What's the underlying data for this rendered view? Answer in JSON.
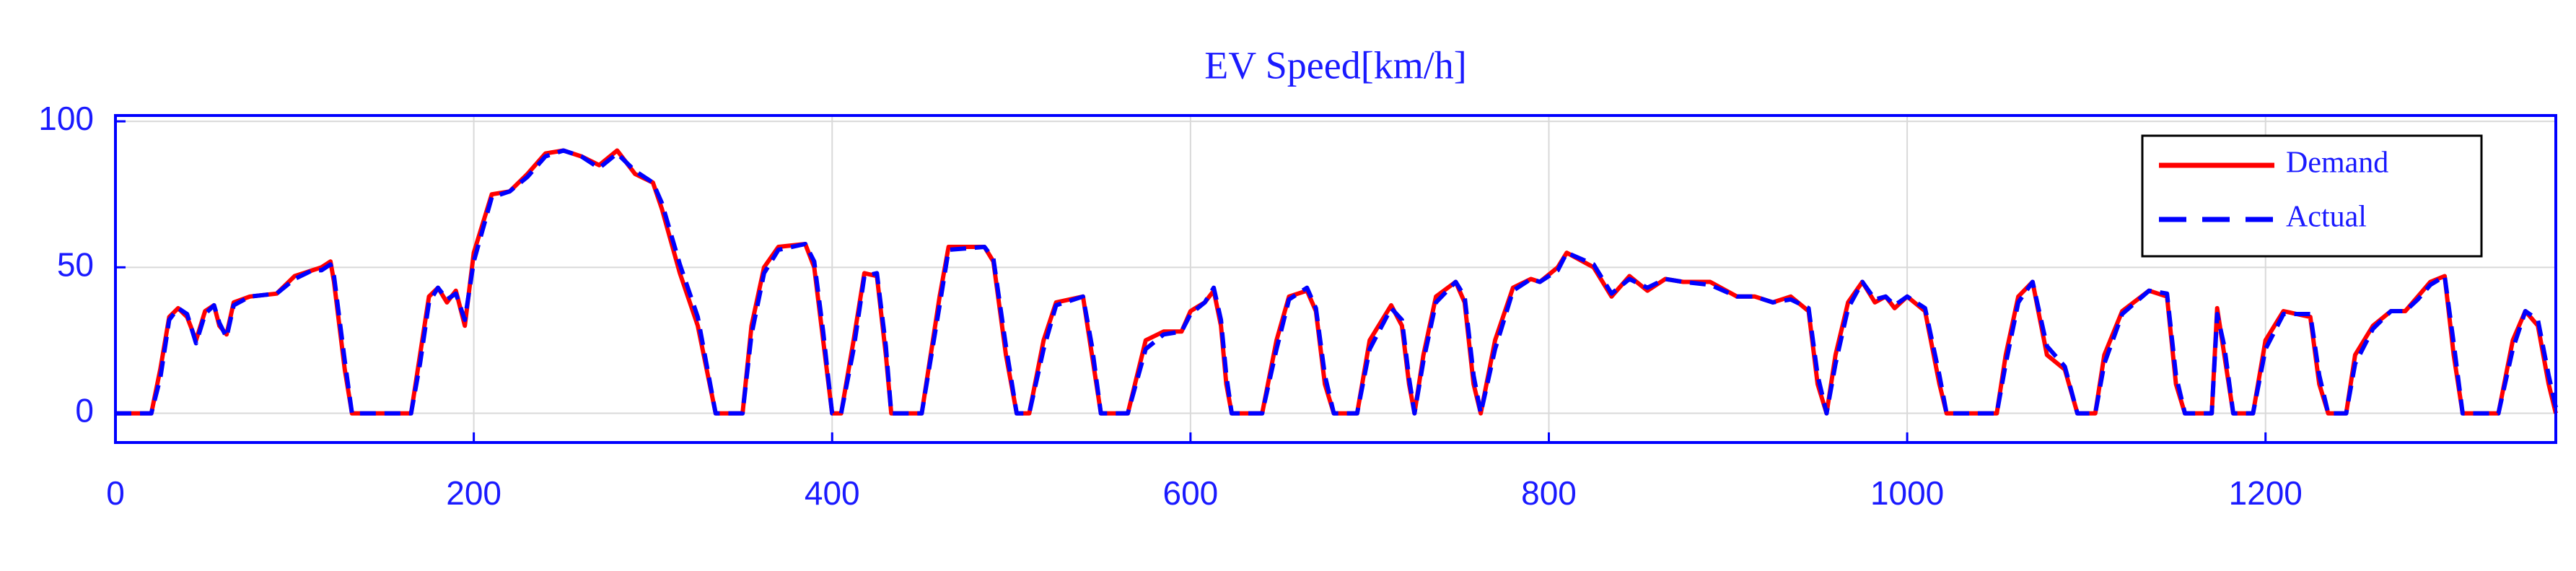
{
  "chart_data": {
    "type": "line",
    "title": "EV Speed[km/h]",
    "x": [
      0,
      20,
      25,
      30,
      35,
      40,
      45,
      50,
      55,
      58,
      62,
      66,
      75,
      90,
      100,
      110,
      115,
      120,
      122,
      128,
      132,
      165,
      170,
      175,
      180,
      185,
      190,
      195,
      200,
      210,
      220,
      230,
      240,
      250,
      260,
      270,
      280,
      290,
      300,
      305,
      315,
      325,
      335,
      350,
      355,
      362,
      370,
      385,
      390,
      395,
      400,
      405,
      412,
      418,
      425,
      430,
      433,
      450,
      460,
      465,
      485,
      490,
      497,
      503,
      510,
      518,
      525,
      540,
      545,
      550,
      565,
      575,
      585,
      595,
      600,
      608,
      613,
      617,
      620,
      623,
      640,
      648,
      655,
      665,
      670,
      675,
      680,
      693,
      700,
      712,
      718,
      722,
      725,
      730,
      737,
      748,
      753,
      758,
      762,
      770,
      780,
      790,
      795,
      805,
      810,
      825,
      835,
      845,
      855,
      865,
      875,
      890,
      905,
      915,
      925,
      935,
      945,
      950,
      955,
      960,
      967,
      975,
      982,
      988,
      993,
      1000,
      1010,
      1018,
      1022,
      1050,
      1055,
      1062,
      1070,
      1078,
      1088,
      1095,
      1105,
      1110,
      1120,
      1135,
      1145,
      1150,
      1155,
      1170,
      1173,
      1177,
      1182,
      1193,
      1200,
      1210,
      1225,
      1230,
      1235,
      1245,
      1250,
      1260,
      1270,
      1278,
      1285,
      1292,
      1300,
      1305,
      1310,
      1330,
      1338,
      1345,
      1352,
      1358,
      1362
    ],
    "series": [
      {
        "name": "Demand",
        "color": "#ff0000",
        "dash": false,
        "values": [
          0,
          0,
          15,
          33,
          36,
          33,
          25,
          35,
          37,
          30,
          27,
          38,
          40,
          41,
          47,
          49,
          50,
          52,
          45,
          15,
          0,
          0,
          20,
          40,
          43,
          38,
          42,
          30,
          55,
          75,
          76,
          82,
          89,
          90,
          88,
          85,
          90,
          82,
          79,
          70,
          48,
          30,
          0,
          0,
          30,
          50,
          57,
          58,
          50,
          25,
          0,
          0,
          25,
          48,
          47,
          20,
          0,
          0,
          40,
          57,
          57,
          52,
          20,
          0,
          0,
          25,
          38,
          40,
          20,
          0,
          0,
          25,
          28,
          28,
          35,
          38,
          42,
          30,
          10,
          0,
          0,
          25,
          40,
          42,
          35,
          10,
          0,
          0,
          25,
          37,
          30,
          10,
          0,
          20,
          40,
          45,
          38,
          10,
          0,
          25,
          43,
          46,
          45,
          50,
          55,
          50,
          40,
          47,
          42,
          46,
          45,
          45,
          40,
          40,
          38,
          40,
          35,
          10,
          0,
          20,
          38,
          45,
          38,
          40,
          36,
          40,
          35,
          10,
          0,
          0,
          20,
          40,
          45,
          20,
          15,
          0,
          0,
          20,
          35,
          42,
          40,
          10,
          0,
          0,
          36,
          20,
          0,
          0,
          25,
          35,
          33,
          10,
          0,
          0,
          20,
          30,
          35,
          35,
          40,
          45,
          47,
          20,
          0,
          0,
          25,
          35,
          30,
          10,
          0
        ]
      },
      {
        "name": "Actual",
        "color": "#0000ff",
        "dash": true,
        "values": [
          0,
          0,
          12,
          32,
          36,
          34,
          24,
          34,
          37,
          31,
          26,
          37,
          40,
          41,
          46,
          49,
          49,
          51,
          47,
          18,
          0,
          0,
          17,
          38,
          43,
          39,
          41,
          32,
          52,
          74,
          76,
          81,
          88,
          90,
          88,
          84,
          89,
          83,
          79,
          72,
          51,
          33,
          0,
          0,
          27,
          48,
          56,
          58,
          52,
          28,
          0,
          0,
          22,
          47,
          48,
          23,
          0,
          0,
          37,
          56,
          57,
          53,
          23,
          0,
          0,
          22,
          37,
          40,
          23,
          0,
          0,
          22,
          27,
          28,
          34,
          38,
          43,
          32,
          13,
          0,
          0,
          22,
          39,
          43,
          36,
          13,
          0,
          0,
          22,
          36,
          32,
          12,
          0,
          18,
          38,
          45,
          40,
          13,
          0,
          22,
          42,
          46,
          45,
          49,
          55,
          51,
          41,
          46,
          43,
          46,
          45,
          44,
          40,
          40,
          38,
          39,
          36,
          13,
          0,
          17,
          36,
          45,
          39,
          40,
          37,
          40,
          36,
          13,
          0,
          0,
          17,
          38,
          45,
          23,
          16,
          0,
          0,
          17,
          34,
          42,
          41,
          13,
          0,
          0,
          34,
          23,
          0,
          0,
          22,
          34,
          34,
          13,
          0,
          0,
          17,
          29,
          35,
          35,
          39,
          44,
          47,
          24,
          0,
          0,
          22,
          35,
          32,
          13,
          2
        ]
      }
    ],
    "xlim": [
      0,
      1362
    ],
    "xticks": [
      0,
      200,
      400,
      600,
      800,
      1000,
      1200
    ],
    "ylim": [
      -10,
      102
    ],
    "yticks": [
      0,
      50,
      100
    ],
    "grid": true,
    "legend": "upper right"
  }
}
